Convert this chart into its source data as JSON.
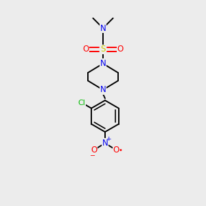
{
  "background_color": "#ececec",
  "atom_colors": {
    "C": "#000000",
    "N": "#0000ee",
    "O": "#ff0000",
    "S": "#cccc00",
    "Cl": "#00bb00"
  },
  "bond_color": "#000000",
  "figsize": [
    3.0,
    3.0
  ],
  "dpi": 100,
  "xlim": [
    0,
    10
  ],
  "ylim": [
    0,
    10
  ]
}
